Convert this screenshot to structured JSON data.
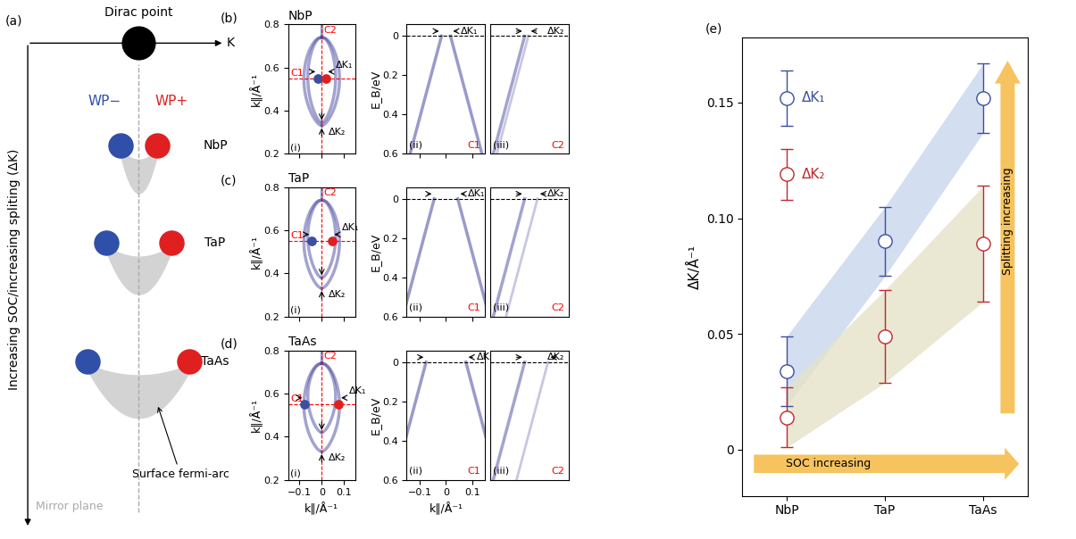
{
  "panel_a": {
    "label": "(a)",
    "dirac_point": "Dirac point",
    "k_axis": "K",
    "wp_minus": "WP−",
    "wp_plus": "WP+",
    "materials": [
      "NbP",
      "TaP",
      "TaAs"
    ],
    "side_label": "Increasing SOC/increasing spliting (ΔK)",
    "mirror_label": "Mirror plane",
    "arc_label": "Surface fermi-arc"
  },
  "arpes": {
    "map_xlabel": "k∥/Å⁻¹",
    "map_ylabel": "k∥/Å⁻¹",
    "cut_xlabel": "k∥/Å⁻¹",
    "cut_ylabel": "E_B/eV",
    "map_xlim": [
      -0.15,
      0.15
    ],
    "map_xticks": [
      {
        "value": -0.1,
        "label": "−0.1"
      },
      0,
      0.1
    ],
    "map_ylim": [
      0.2,
      0.8
    ],
    "map_yticks": [
      0.2,
      0.4,
      0.6,
      0.8
    ],
    "cut_xlim": [
      -0.15,
      0.15
    ],
    "cut_xticks": [
      {
        "value": -0.1,
        "label": "−0.1"
      },
      0,
      0.1
    ],
    "cut_ylim": [
      0.6,
      -0.06
    ],
    "cut_yticks": [
      0,
      0.2,
      0.4,
      0.6
    ],
    "c1_k": 0.55,
    "dk2_k": 0.33,
    "cut1": "C1",
    "cut2": "C2",
    "dk1_label": "ΔK₁",
    "dk2_label": "ΔK₂",
    "sub": [
      "(i)",
      "(ii)",
      "(iii)"
    ],
    "panels": [
      {
        "label": "(b)",
        "title": "NbP"
      },
      {
        "label": "(c)",
        "title": "TaP"
      },
      {
        "label": "(d)",
        "title": "TaAs"
      }
    ]
  },
  "chart_data": {
    "type": "scatter",
    "label": "(e)",
    "categories": [
      "NbP",
      "TaP",
      "TaAs"
    ],
    "ylabel": "ΔK/Å⁻¹",
    "ylim": [
      -0.02,
      0.178
    ],
    "yticks": [
      0,
      0.05,
      {
        "value": 0.1,
        "label": "0.10"
      },
      0.15
    ],
    "series": [
      {
        "name": "ΔK₁",
        "color": "#3a4fa0",
        "marker": "circle",
        "values": [
          0.034,
          0.09,
          0.152
        ],
        "errors": [
          0.015,
          0.015,
          0.015
        ],
        "key_value": 0.152,
        "key_error": 0.012
      },
      {
        "name": "ΔK₂",
        "color": "#c0282d",
        "marker": "circle",
        "values": [
          0.014,
          0.049,
          0.089
        ],
        "errors": [
          0.013,
          0.02,
          0.025
        ],
        "key_value": 0.119,
        "key_error": 0.011
      }
    ],
    "annotations": [
      "SOC increasing",
      "Splitting increasing"
    ]
  }
}
